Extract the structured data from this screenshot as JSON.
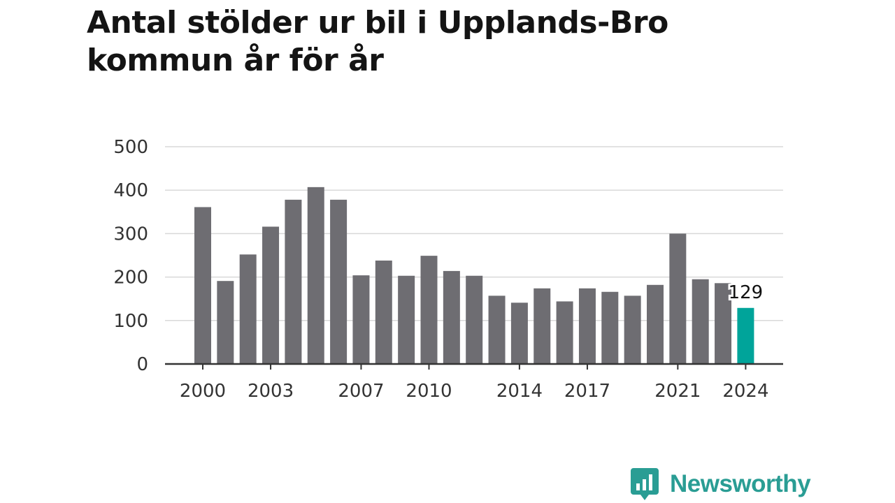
{
  "title_lines": [
    "Antal stölder ur bil i Upplands-Bro",
    "kommun år för år"
  ],
  "brand": {
    "name": "Newsworthy",
    "icon": "newsworthy-logo-icon",
    "color": "#2a9d94"
  },
  "chart_data": {
    "type": "bar",
    "title": "Antal stölder ur bil i Upplands-Bro kommun år för år",
    "categories": [
      "2000",
      "2001",
      "2002",
      "2003",
      "2004",
      "2005",
      "2006",
      "2007",
      "2008",
      "2009",
      "2010",
      "2011",
      "2012",
      "2013",
      "2014",
      "2015",
      "2016",
      "2017",
      "2018",
      "2019",
      "2020",
      "2021",
      "2022",
      "2023",
      "2024"
    ],
    "values": [
      361,
      191,
      252,
      316,
      378,
      407,
      378,
      204,
      238,
      203,
      249,
      214,
      203,
      157,
      141,
      174,
      144,
      174,
      166,
      157,
      182,
      300,
      195,
      186,
      129
    ],
    "x_tick_labels": [
      "2000",
      "2003",
      "2007",
      "2010",
      "2014",
      "2017",
      "2021",
      "2024"
    ],
    "y_ticks": [
      0,
      100,
      200,
      300,
      400,
      500
    ],
    "ylim": [
      0,
      500
    ],
    "grid": true,
    "highlight": {
      "index": 24,
      "label": "129",
      "color": "#00a49a"
    },
    "bar_color": "#6e6d72"
  }
}
